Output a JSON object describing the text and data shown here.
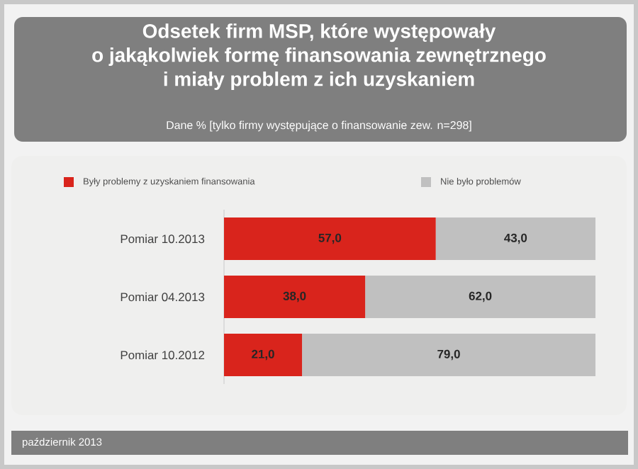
{
  "chart_data": {
    "type": "bar",
    "orientation": "horizontal",
    "stacked": true,
    "title": "Odsetek firm MSP, które występowały\no jakąkolwiek formę finansowania zewnętrznego\ni miały problem z ich uzyskaniem",
    "subtitle": "Dane % [tylko firmy występujące o finansowanie zew. n=298]",
    "categories": [
      "Pomiar 10.2013",
      "Pomiar 04.2013",
      "Pomiar 10.2012"
    ],
    "series": [
      {
        "name": "Były problemy z uzyskaniem finansowania",
        "color": "#d9241c",
        "values": [
          57,
          38,
          21
        ],
        "value_labels": [
          "57,0",
          "38,0",
          "21,0"
        ]
      },
      {
        "name": "Nie było problemów",
        "color": "#c0c0c0",
        "values": [
          43,
          62,
          79
        ],
        "value_labels": [
          "43,0",
          "62,0",
          "79,0"
        ]
      }
    ],
    "xlim": [
      0,
      100
    ],
    "tick_labels": "y",
    "legend": "top",
    "annotations": [
      "październik 2013"
    ]
  }
}
